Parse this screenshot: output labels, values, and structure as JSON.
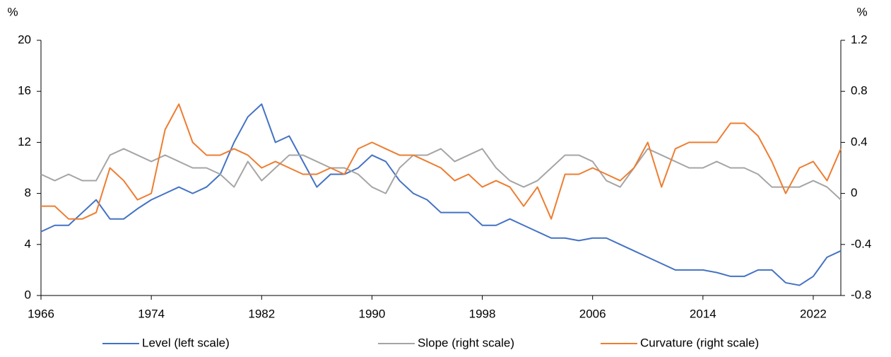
{
  "chart_data": {
    "type": "line",
    "y_unit": "%",
    "y2_unit": "%",
    "x": [
      1966,
      1967,
      1968,
      1969,
      1970,
      1971,
      1972,
      1973,
      1974,
      1975,
      1976,
      1977,
      1978,
      1979,
      1980,
      1981,
      1982,
      1983,
      1984,
      1985,
      1986,
      1987,
      1988,
      1989,
      1990,
      1991,
      1992,
      1993,
      1994,
      1995,
      1996,
      1997,
      1998,
      1999,
      2000,
      2001,
      2002,
      2003,
      2004,
      2005,
      2006,
      2007,
      2008,
      2009,
      2010,
      2011,
      2012,
      2013,
      2014,
      2015,
      2016,
      2017,
      2018,
      2019,
      2020,
      2021,
      2022,
      2023,
      2024
    ],
    "xlim": [
      1966,
      2024
    ],
    "xticks": [
      1966,
      1974,
      1982,
      1990,
      1998,
      2006,
      2014,
      2022
    ],
    "ylim": [
      0,
      20
    ],
    "yticks": [
      0,
      4,
      8,
      12,
      16,
      20
    ],
    "y2lim": [
      -0.8,
      1.2
    ],
    "y2ticks": [
      -0.8,
      -0.4,
      0,
      0.4,
      0.8,
      1.2
    ],
    "legend": "bottom",
    "series": [
      {
        "name": "Level (left scale)",
        "color": "#4472c4",
        "axis": "y",
        "values": [
          5,
          5.5,
          5.5,
          6.5,
          7.5,
          6,
          6,
          6.8,
          7.5,
          8,
          8.5,
          8,
          8.5,
          9.5,
          12,
          14,
          15,
          12,
          12.5,
          10.5,
          8.5,
          9.5,
          9.5,
          10,
          11,
          10.5,
          9,
          8,
          7.5,
          6.5,
          6.5,
          6.5,
          5.5,
          5.5,
          6,
          5.5,
          5,
          4.5,
          4.5,
          4.3,
          4.5,
          4.5,
          4,
          3.5,
          3,
          2.5,
          2,
          2,
          2,
          1.8,
          1.5,
          1.5,
          2,
          2,
          1,
          0.8,
          1.5,
          3,
          3.5
        ]
      },
      {
        "name": "Slope (right scale)",
        "color": "#a5a5a5",
        "axis": "y2",
        "values": [
          0.15,
          0.1,
          0.15,
          0.1,
          0.1,
          0.3,
          0.35,
          0.3,
          0.25,
          0.3,
          0.25,
          0.2,
          0.2,
          0.15,
          0.05,
          0.25,
          0.1,
          0.2,
          0.3,
          0.3,
          0.25,
          0.2,
          0.2,
          0.15,
          0.05,
          0,
          0.2,
          0.3,
          0.3,
          0.35,
          0.25,
          0.3,
          0.35,
          0.2,
          0.1,
          0.05,
          0.1,
          0.2,
          0.3,
          0.3,
          0.25,
          0.1,
          0.05,
          0.2,
          0.35,
          0.3,
          0.25,
          0.2,
          0.2,
          0.25,
          0.2,
          0.2,
          0.15,
          0.05,
          0.05,
          0.05,
          0.1,
          0.05,
          -0.05
        ]
      },
      {
        "name": "Curvature (right scale)",
        "color": "#ed7d31",
        "axis": "y2",
        "values": [
          -0.1,
          -0.1,
          -0.2,
          -0.2,
          -0.15,
          0.2,
          0.1,
          -0.05,
          0,
          0.5,
          0.7,
          0.4,
          0.3,
          0.3,
          0.35,
          0.3,
          0.2,
          0.25,
          0.2,
          0.15,
          0.15,
          0.2,
          0.15,
          0.35,
          0.4,
          0.35,
          0.3,
          0.3,
          0.25,
          0.2,
          0.1,
          0.15,
          0.05,
          0.1,
          0.05,
          -0.1,
          0.05,
          -0.2,
          0.15,
          0.15,
          0.2,
          0.15,
          0.1,
          0.2,
          0.4,
          0.05,
          0.35,
          0.4,
          0.4,
          0.4,
          0.55,
          0.55,
          0.45,
          0.25,
          0,
          0.2,
          0.25,
          0.1,
          0.35
        ]
      }
    ]
  }
}
